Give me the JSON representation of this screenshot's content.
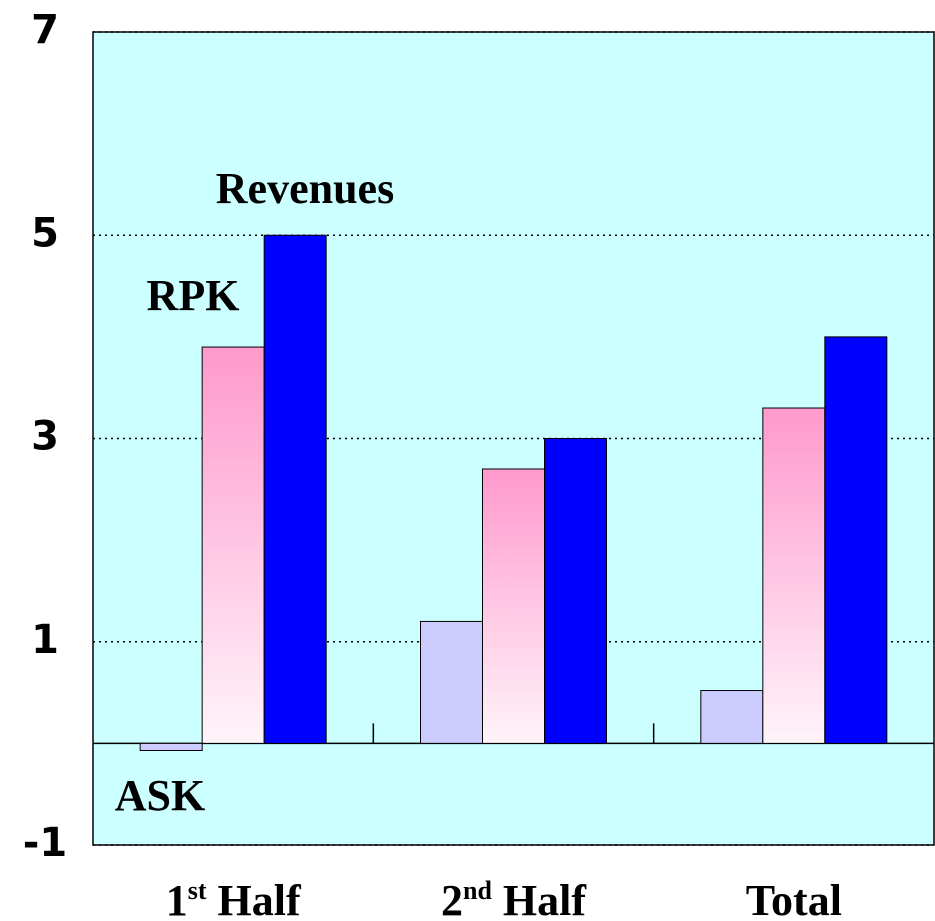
{
  "chart_data": {
    "type": "bar",
    "categories": [
      "1st Half",
      "2nd Half",
      "Total"
    ],
    "series": [
      {
        "name": "ASK",
        "color": "#ccccff",
        "values": [
          -0.07,
          1.2,
          0.52
        ]
      },
      {
        "name": "RPK",
        "color": "#ff99cc",
        "values": [
          3.9,
          2.7,
          3.3
        ]
      },
      {
        "name": "Revenues",
        "color": "#0000ff",
        "values": [
          5.0,
          3.0,
          4.0
        ]
      }
    ],
    "ylim": [
      -1,
      7
    ],
    "yticks": [
      -1,
      1,
      3,
      5,
      7
    ],
    "grid": true,
    "background": "#ccffff"
  }
}
